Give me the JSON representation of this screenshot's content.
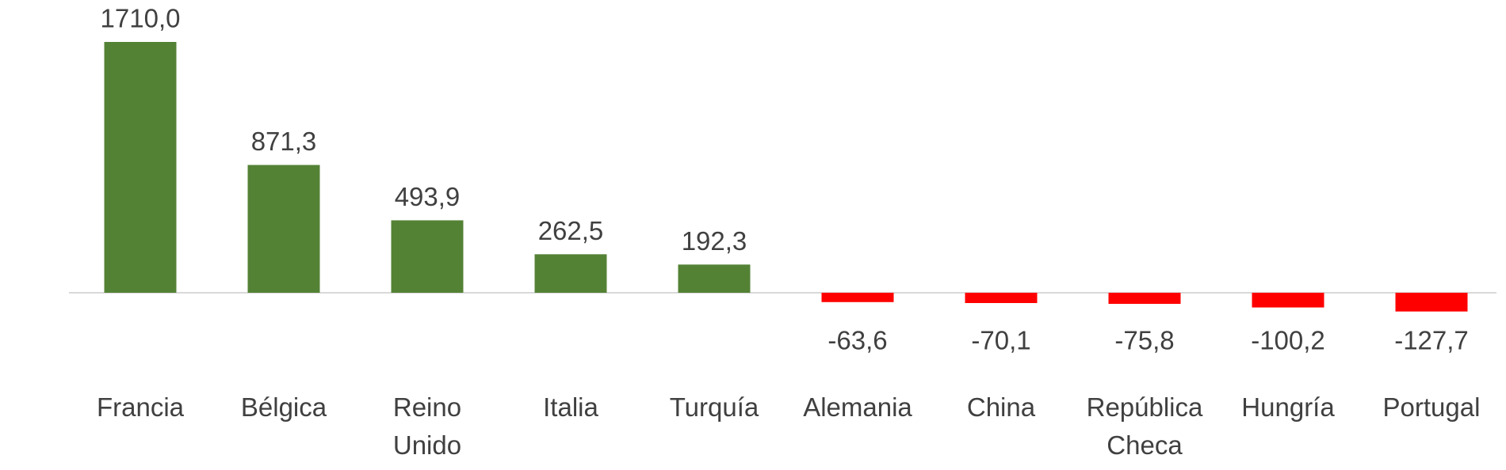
{
  "chart_data": {
    "type": "bar",
    "categories": [
      "Francia",
      "Bélgica",
      "Reino Unido",
      "Italia",
      "Turquía",
      "Alemania",
      "China",
      "República Checa",
      "Hungría",
      "Portugal"
    ],
    "values": [
      1710.0,
      871.3,
      493.9,
      262.5,
      192.3,
      -63.6,
      -70.1,
      -75.8,
      -100.2,
      -127.7
    ],
    "value_labels": [
      "1710,0",
      "871,3",
      "493,9",
      "262,5",
      "192,3",
      "-63,6",
      "-70,1",
      "-75,8",
      "-100,2",
      "-127,7"
    ],
    "colors": [
      "#548235",
      "#548235",
      "#548235",
      "#548235",
      "#548235",
      "#ff0000",
      "#ff0000",
      "#ff0000",
      "#ff0000",
      "#ff0000"
    ]
  }
}
